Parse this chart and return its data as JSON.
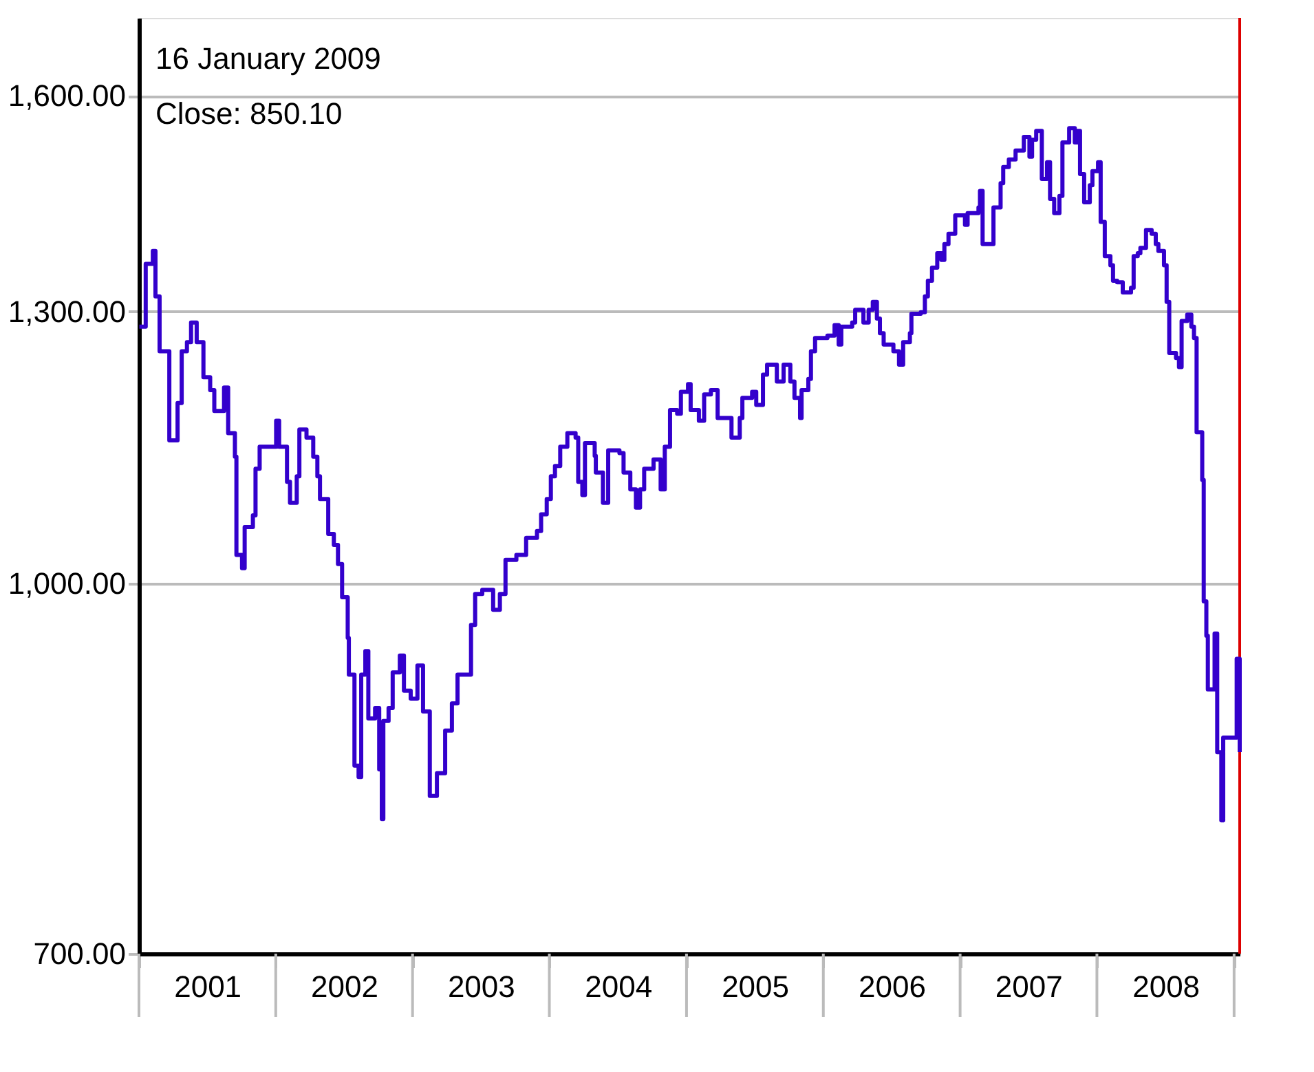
{
  "chart_data": {
    "type": "step",
    "annotations": [
      "16 January 2009",
      "Close: 850.10"
    ],
    "x": [
      "2001-01-02",
      "2001-01-19",
      "2001-02-07",
      "2001-02-14",
      "2001-02-25",
      "2001-03-15",
      "2001-03-23",
      "2001-04-14",
      "2001-04-25",
      "2001-05-09",
      "2001-05-20",
      "2001-06-04",
      "2001-06-22",
      "2001-07-10",
      "2001-07-21",
      "2001-08-16",
      "2001-08-27",
      "2001-09-14",
      "2001-09-18",
      "2001-10-03",
      "2001-10-10",
      "2001-11-01",
      "2001-11-08",
      "2001-11-19",
      "2001-12-15",
      "2002-01-02",
      "2002-01-10",
      "2002-01-31",
      "2002-02-08",
      "2002-02-26",
      "2002-03-05",
      "2002-03-24",
      "2002-04-11",
      "2002-04-22",
      "2002-04-29",
      "2002-05-21",
      "2002-06-05",
      "2002-06-16",
      "2002-06-27",
      "2002-07-12",
      "2002-07-15",
      "2002-07-30",
      "2002-08-10",
      "2002-08-17",
      "2002-08-28",
      "2002-09-05",
      "2002-09-23",
      "2002-10-04",
      "2002-10-11",
      "2002-10-15",
      "2002-10-29",
      "2002-11-09",
      "2002-11-28",
      "2002-12-09",
      "2002-12-27",
      "2003-01-14",
      "2003-01-29",
      "2003-02-16",
      "2003-03-07",
      "2003-03-29",
      "2003-04-16",
      "2003-05-01",
      "2003-05-30",
      "2003-06-06",
      "2003-06-17",
      "2003-07-06",
      "2003-08-04",
      "2003-08-22",
      "2003-09-06",
      "2003-10-05",
      "2003-10-31",
      "2003-11-29",
      "2003-12-10",
      "2003-12-25",
      "2004-01-05",
      "2004-01-16",
      "2004-01-30",
      "2004-02-18",
      "2004-03-11",
      "2004-03-18",
      "2004-03-29",
      "2004-04-05",
      "2004-05-01",
      "2004-05-04",
      "2004-05-23",
      "2004-06-06",
      "2004-07-06",
      "2004-07-17",
      "2004-08-04",
      "2004-08-19",
      "2004-08-30",
      "2004-09-10",
      "2004-10-05",
      "2004-10-24",
      "2004-11-04",
      "2004-11-18",
      "2004-12-07",
      "2004-12-17",
      "2005-01-05",
      "2005-01-12",
      "2005-02-03",
      "2005-02-17",
      "2005-03-07",
      "2005-03-25",
      "2005-05-01",
      "2005-05-23",
      "2005-05-30",
      "2005-06-25",
      "2005-07-06",
      "2005-07-24",
      "2005-08-04",
      "2005-08-30",
      "2005-09-17",
      "2005-10-05",
      "2005-10-16",
      "2005-10-31",
      "2005-11-04",
      "2005-11-22",
      "2005-11-29",
      "2005-12-10",
      "2006-01-12",
      "2006-01-31",
      "2006-02-11",
      "2006-02-18",
      "2006-03-19",
      "2006-03-27",
      "2006-04-18",
      "2006-05-02",
      "2006-05-13",
      "2006-05-24",
      "2006-06-01",
      "2006-06-11",
      "2006-07-07",
      "2006-07-22",
      "2006-08-02",
      "2006-08-20",
      "2006-08-24",
      "2006-09-18",
      "2006-09-29",
      "2006-10-07",
      "2006-10-18",
      "2006-11-01",
      "2006-11-12",
      "2006-11-20",
      "2006-12-01",
      "2006-12-19",
      "2007-01-14",
      "2007-01-21",
      "2007-02-19",
      "2007-02-23",
      "2007-03-02",
      "2007-03-24",
      "2007-03-31",
      "2007-04-19",
      "2007-04-26",
      "2007-05-11",
      "2007-05-29",
      "2007-06-20",
      "2007-07-05",
      "2007-07-12",
      "2007-07-23",
      "2007-08-07",
      "2007-08-21",
      "2007-08-29",
      "2007-09-09",
      "2007-09-23",
      "2007-10-01",
      "2007-10-19",
      "2007-11-03",
      "2007-11-10",
      "2007-11-17",
      "2007-11-28",
      "2007-12-13",
      "2007-12-20",
      "2008-01-04",
      "2008-01-11",
      "2008-01-22",
      "2008-02-06",
      "2008-02-13",
      "2008-02-24",
      "2008-03-10",
      "2008-04-01",
      "2008-04-08",
      "2008-04-19",
      "2008-04-26",
      "2008-05-11",
      "2008-05-26",
      "2008-06-06",
      "2008-06-13",
      "2008-06-28",
      "2008-07-05",
      "2008-07-12",
      "2008-07-30",
      "2008-08-07",
      "2008-08-14",
      "2008-08-29",
      "2008-09-09",
      "2008-09-16",
      "2008-09-23",
      "2008-10-08",
      "2008-10-12",
      "2008-10-19",
      "2008-10-23",
      "2008-11-10",
      "2008-11-17",
      "2008-11-28",
      "2008-12-03",
      "2008-12-31",
      "2009-01-08",
      "2009-01-16"
    ],
    "series": [
      {
        "color": "#3300cc",
        "values": [
          1281,
          1361,
          1378,
          1319,
          1251,
          1251,
          1148,
          1190,
          1251,
          1262,
          1286,
          1262,
          1220,
          1205,
          1181,
          1208,
          1156,
          1130,
          1028,
          1015,
          1056,
          1068,
          1117,
          1141,
          1141,
          1170,
          1141,
          1103,
          1081,
          1109,
          1160,
          1151,
          1130,
          1109,
          1085,
          1049,
          1038,
          1019,
          987,
          949,
          916,
          839,
          830,
          916,
          937,
          878,
          887,
          836,
          797,
          876,
          887,
          918,
          933,
          902,
          895,
          924,
          884,
          815,
          833,
          868,
          891,
          916,
          916,
          961,
          990,
          994,
          975,
          990,
          1023,
          1028,
          1045,
          1052,
          1069,
          1085,
          1109,
          1120,
          1141,
          1156,
          1151,
          1103,
          1089,
          1145,
          1131,
          1113,
          1081,
          1137,
          1134,
          1113,
          1095,
          1076,
          1095,
          1117,
          1127,
          1095,
          1141,
          1182,
          1178,
          1203,
          1212,
          1182,
          1170,
          1200,
          1205,
          1173,
          1151,
          1173,
          1196,
          1203,
          1188,
          1223,
          1235,
          1215,
          1235,
          1215,
          1196,
          1173,
          1205,
          1218,
          1251,
          1267,
          1270,
          1283,
          1259,
          1281,
          1286,
          1302,
          1286,
          1302,
          1312,
          1291,
          1273,
          1259,
          1251,
          1235,
          1262,
          1273,
          1297,
          1299,
          1319,
          1339,
          1356,
          1375,
          1366,
          1387,
          1401,
          1426,
          1413,
          1429,
          1437,
          1460,
          1387,
          1387,
          1437,
          1471,
          1494,
          1505,
          1518,
          1538,
          1509,
          1534,
          1547,
          1477,
          1501,
          1449,
          1429,
          1453,
          1530,
          1551,
          1530,
          1547,
          1484,
          1444,
          1468,
          1488,
          1501,
          1417,
          1371,
          1359,
          1339,
          1337,
          1324,
          1330,
          1371,
          1375,
          1382,
          1406,
          1401,
          1387,
          1378,
          1359,
          1312,
          1249,
          1243,
          1232,
          1288,
          1296,
          1281,
          1267,
          1157,
          1105,
          983,
          951,
          903,
          953,
          850,
          796,
          862,
          862,
          930,
          850.1
        ]
      }
    ],
    "log": true,
    "ylim": [
      700,
      1725
    ],
    "yticks": [
      {
        "value": 700,
        "label": "700.00"
      },
      {
        "value": 1000,
        "label": "1,000.00"
      },
      {
        "value": 1300,
        "label": "1,300.00"
      },
      {
        "value": 1600,
        "label": "1,600.00"
      }
    ],
    "xlim": [
      "2001-01-01",
      "2009-01-16"
    ],
    "xticks": [
      {
        "value": "2001-01-01",
        "label": null
      },
      {
        "value": "2001-07-02",
        "label": "2001"
      },
      {
        "value": "2002-01-01",
        "label": null
      },
      {
        "value": "2002-07-02",
        "label": "2002"
      },
      {
        "value": "2003-01-01",
        "label": null
      },
      {
        "value": "2003-07-02",
        "label": "2003"
      },
      {
        "value": "2004-01-01",
        "label": null
      },
      {
        "value": "2004-07-02",
        "label": "2004"
      },
      {
        "value": "2005-01-01",
        "label": null
      },
      {
        "value": "2005-07-02",
        "label": "2005"
      },
      {
        "value": "2006-01-01",
        "label": null
      },
      {
        "value": "2006-07-02",
        "label": "2006"
      },
      {
        "value": "2007-01-01",
        "label": null
      },
      {
        "value": "2007-07-02",
        "label": "2007"
      },
      {
        "value": "2008-01-01",
        "label": null
      },
      {
        "value": "2008-07-02",
        "label": "2008"
      },
      {
        "value": "2009-01-01",
        "label": null
      }
    ],
    "ref_lines": [
      {
        "axis": "x",
        "value": "2009-01-16",
        "color": "#dd0000"
      }
    ],
    "grid": "y"
  }
}
